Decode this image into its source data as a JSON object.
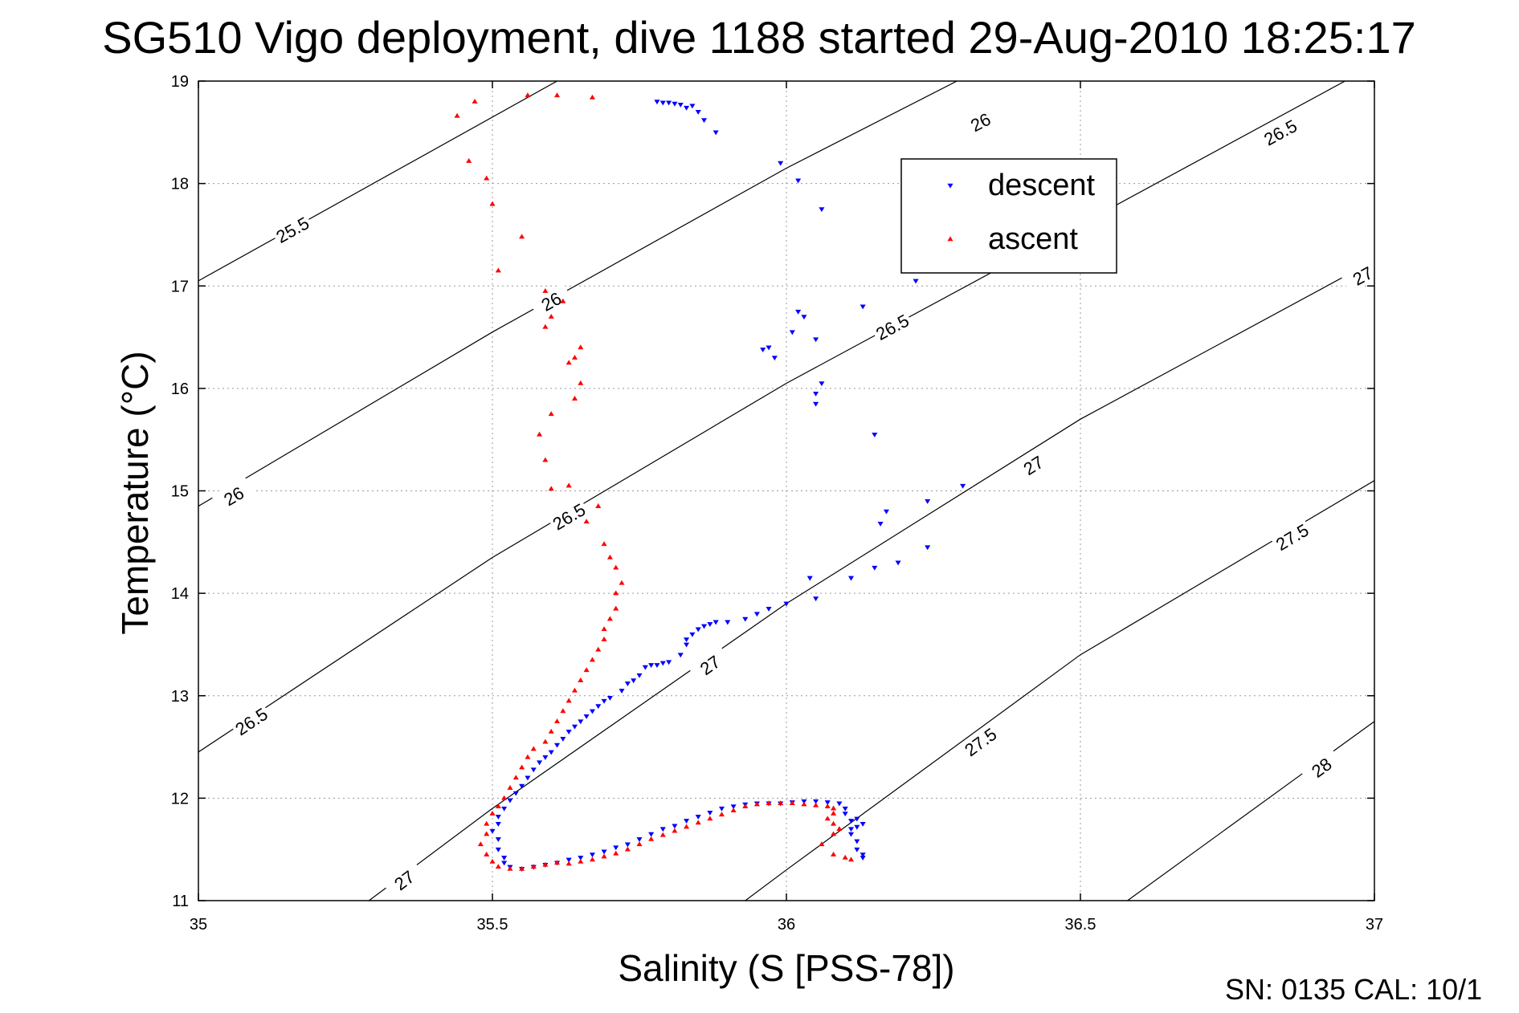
{
  "chart_data": {
    "type": "scatter",
    "title": "SG510 Vigo deployment, dive 1188 started 29-Aug-2010 18:25:17",
    "xlabel": "Salinity (S [PSS-78])",
    "ylabel": "Temperature (°C)",
    "xlim": [
      35,
      37
    ],
    "ylim": [
      11,
      19
    ],
    "xticks": [
      35,
      35.5,
      36,
      36.5,
      37
    ],
    "xtick_labels": [
      "35",
      "35.5",
      "36",
      "36.5",
      "37"
    ],
    "yticks": [
      11,
      12,
      13,
      14,
      15,
      16,
      17,
      18,
      19
    ],
    "ytick_labels": [
      "11",
      "12",
      "13",
      "14",
      "15",
      "16",
      "17",
      "18",
      "19"
    ],
    "grid": true,
    "legend_position": "top-right",
    "footer_text": "SN: 0135  CAL: 10/1",
    "density_contours": [
      {
        "level": "25.5",
        "points": [
          [
            35.0,
            17.05
          ],
          [
            35.61,
            19.0
          ]
        ],
        "labels": [
          {
            "x": 35.16,
            "y": 17.55
          }
        ]
      },
      {
        "level": "26",
        "points": [
          [
            35.0,
            14.85
          ],
          [
            35.5,
            16.55
          ],
          [
            36.0,
            18.15
          ],
          [
            36.29,
            19.0
          ]
        ],
        "labels": [
          {
            "x": 35.06,
            "y": 14.95
          },
          {
            "x": 35.6,
            "y": 16.85
          },
          {
            "x": 36.33,
            "y": 18.6
          }
        ]
      },
      {
        "level": "26.5",
        "points": [
          [
            35.0,
            12.45
          ],
          [
            35.5,
            14.35
          ],
          [
            36.0,
            16.05
          ],
          [
            36.5,
            17.6
          ],
          [
            36.95,
            19.0
          ]
        ],
        "labels": [
          {
            "x": 35.09,
            "y": 12.75
          },
          {
            "x": 35.63,
            "y": 14.75
          },
          {
            "x": 36.18,
            "y": 16.6
          },
          {
            "x": 36.84,
            "y": 18.5
          }
        ]
      },
      {
        "level": "27",
        "points": [
          [
            35.29,
            11.0
          ],
          [
            35.5,
            11.9
          ],
          [
            36.0,
            13.9
          ],
          [
            36.5,
            15.7
          ],
          [
            37.0,
            17.25
          ]
        ],
        "labels": [
          {
            "x": 35.35,
            "y": 11.2
          },
          {
            "x": 35.87,
            "y": 13.3
          },
          {
            "x": 36.42,
            "y": 15.25
          },
          {
            "x": 36.98,
            "y": 17.1
          }
        ]
      },
      {
        "level": "27.5",
        "points": [
          [
            35.93,
            11.0
          ],
          [
            36.0,
            11.3
          ],
          [
            36.5,
            13.4
          ],
          [
            37.0,
            15.1
          ]
        ],
        "labels": [
          {
            "x": 36.33,
            "y": 12.55
          },
          {
            "x": 36.86,
            "y": 14.55
          }
        ]
      },
      {
        "level": "28",
        "points": [
          [
            36.58,
            11.0
          ],
          [
            37.0,
            12.75
          ]
        ],
        "labels": [
          {
            "x": 36.91,
            "y": 12.3
          }
        ]
      }
    ],
    "series": [
      {
        "name": "descent",
        "color": "#0000ff",
        "marker": "triangle-down",
        "points": [
          [
            35.78,
            18.8
          ],
          [
            35.79,
            18.79
          ],
          [
            35.8,
            18.79
          ],
          [
            35.81,
            18.78
          ],
          [
            35.82,
            18.77
          ],
          [
            35.83,
            18.74
          ],
          [
            35.84,
            18.76
          ],
          [
            35.85,
            18.7
          ],
          [
            35.86,
            18.62
          ],
          [
            35.88,
            18.5
          ],
          [
            35.99,
            18.2
          ],
          [
            36.02,
            18.03
          ],
          [
            36.06,
            17.75
          ],
          [
            36.22,
            17.05
          ],
          [
            36.13,
            16.8
          ],
          [
            36.02,
            16.75
          ],
          [
            36.03,
            16.7
          ],
          [
            36.01,
            16.55
          ],
          [
            36.05,
            16.48
          ],
          [
            35.97,
            16.4
          ],
          [
            35.98,
            16.3
          ],
          [
            35.96,
            16.38
          ],
          [
            36.06,
            16.05
          ],
          [
            36.05,
            15.95
          ],
          [
            36.05,
            15.85
          ],
          [
            36.15,
            15.55
          ],
          [
            36.3,
            15.05
          ],
          [
            36.24,
            14.9
          ],
          [
            36.17,
            14.8
          ],
          [
            36.16,
            14.68
          ],
          [
            36.24,
            14.45
          ],
          [
            36.19,
            14.3
          ],
          [
            36.15,
            14.25
          ],
          [
            36.11,
            14.15
          ],
          [
            36.04,
            14.15
          ],
          [
            36.05,
            13.95
          ],
          [
            36.0,
            13.9
          ],
          [
            35.97,
            13.85
          ],
          [
            35.95,
            13.8
          ],
          [
            35.93,
            13.75
          ],
          [
            35.9,
            13.72
          ],
          [
            35.88,
            13.72
          ],
          [
            35.87,
            13.7
          ],
          [
            35.86,
            13.68
          ],
          [
            35.85,
            13.65
          ],
          [
            35.84,
            13.6
          ],
          [
            35.83,
            13.55
          ],
          [
            35.83,
            13.5
          ],
          [
            35.82,
            13.4
          ],
          [
            35.8,
            13.33
          ],
          [
            35.79,
            13.32
          ],
          [
            35.78,
            13.3
          ],
          [
            35.77,
            13.3
          ],
          [
            35.76,
            13.28
          ],
          [
            35.75,
            13.2
          ],
          [
            35.74,
            13.15
          ],
          [
            35.73,
            13.12
          ],
          [
            35.72,
            13.05
          ],
          [
            35.7,
            12.98
          ],
          [
            35.69,
            12.95
          ],
          [
            35.68,
            12.9
          ],
          [
            35.67,
            12.85
          ],
          [
            35.66,
            12.8
          ],
          [
            35.65,
            12.75
          ],
          [
            35.64,
            12.7
          ],
          [
            35.63,
            12.65
          ],
          [
            35.62,
            12.58
          ],
          [
            35.61,
            12.52
          ],
          [
            35.6,
            12.45
          ],
          [
            35.59,
            12.4
          ],
          [
            35.58,
            12.35
          ],
          [
            35.57,
            12.28
          ],
          [
            35.56,
            12.2
          ],
          [
            35.55,
            12.12
          ],
          [
            35.54,
            12.05
          ],
          [
            35.53,
            11.98
          ],
          [
            35.52,
            11.9
          ],
          [
            35.51,
            11.82
          ],
          [
            35.51,
            11.75
          ],
          [
            35.5,
            11.68
          ],
          [
            35.51,
            11.6
          ],
          [
            35.51,
            11.5
          ],
          [
            35.52,
            11.42
          ],
          [
            35.52,
            11.37
          ],
          [
            35.53,
            11.33
          ],
          [
            35.55,
            11.31
          ],
          [
            35.57,
            11.33
          ],
          [
            35.59,
            11.35
          ],
          [
            35.61,
            11.37
          ],
          [
            35.63,
            11.4
          ],
          [
            35.65,
            11.42
          ],
          [
            35.67,
            11.45
          ],
          [
            35.69,
            11.48
          ],
          [
            35.71,
            11.52
          ],
          [
            35.73,
            11.55
          ],
          [
            35.75,
            11.6
          ],
          [
            35.77,
            11.65
          ],
          [
            35.79,
            11.7
          ],
          [
            35.81,
            11.73
          ],
          [
            35.83,
            11.78
          ],
          [
            35.85,
            11.82
          ],
          [
            35.87,
            11.86
          ],
          [
            35.89,
            11.9
          ],
          [
            35.91,
            11.92
          ],
          [
            35.93,
            11.94
          ],
          [
            35.95,
            11.95
          ],
          [
            35.97,
            11.95
          ],
          [
            35.99,
            11.95
          ],
          [
            36.01,
            11.96
          ],
          [
            36.03,
            11.97
          ],
          [
            36.05,
            11.97
          ],
          [
            36.07,
            11.96
          ],
          [
            36.09,
            11.95
          ],
          [
            36.1,
            11.9
          ],
          [
            36.1,
            11.85
          ],
          [
            36.11,
            11.78
          ],
          [
            36.12,
            11.72
          ],
          [
            36.11,
            11.65
          ],
          [
            36.12,
            11.58
          ],
          [
            36.12,
            11.5
          ],
          [
            36.13,
            11.45
          ],
          [
            36.13,
            11.42
          ],
          [
            36.12,
            11.8
          ],
          [
            36.13,
            11.75
          ],
          [
            36.11,
            11.7
          ]
        ]
      },
      {
        "name": "ascent",
        "color": "#ff0000",
        "marker": "triangle-up",
        "points": [
          [
            35.44,
            18.66
          ],
          [
            35.47,
            18.8
          ],
          [
            35.56,
            18.86
          ],
          [
            35.61,
            18.86
          ],
          [
            35.67,
            18.84
          ],
          [
            35.46,
            18.22
          ],
          [
            35.49,
            18.05
          ],
          [
            35.5,
            17.8
          ],
          [
            35.55,
            17.48
          ],
          [
            35.51,
            17.15
          ],
          [
            35.59,
            16.95
          ],
          [
            35.62,
            16.85
          ],
          [
            35.6,
            16.7
          ],
          [
            35.59,
            16.6
          ],
          [
            35.65,
            16.4
          ],
          [
            35.64,
            16.3
          ],
          [
            35.63,
            16.25
          ],
          [
            35.65,
            16.05
          ],
          [
            35.64,
            15.9
          ],
          [
            35.6,
            15.75
          ],
          [
            35.58,
            15.55
          ],
          [
            35.59,
            15.3
          ],
          [
            35.6,
            15.02
          ],
          [
            35.63,
            15.05
          ],
          [
            35.68,
            14.85
          ],
          [
            35.66,
            14.7
          ],
          [
            35.69,
            14.48
          ],
          [
            35.7,
            14.35
          ],
          [
            35.71,
            14.25
          ],
          [
            35.72,
            14.1
          ],
          [
            35.71,
            14.0
          ],
          [
            35.71,
            13.85
          ],
          [
            35.7,
            13.75
          ],
          [
            35.69,
            13.65
          ],
          [
            35.69,
            13.55
          ],
          [
            35.68,
            13.45
          ],
          [
            35.67,
            13.35
          ],
          [
            35.66,
            13.25
          ],
          [
            35.65,
            13.15
          ],
          [
            35.64,
            13.05
          ],
          [
            35.63,
            12.95
          ],
          [
            35.62,
            12.85
          ],
          [
            35.61,
            12.75
          ],
          [
            35.6,
            12.65
          ],
          [
            35.59,
            12.55
          ],
          [
            35.57,
            12.48
          ],
          [
            35.56,
            12.4
          ],
          [
            35.55,
            12.3
          ],
          [
            35.54,
            12.2
          ],
          [
            35.53,
            12.1
          ],
          [
            35.52,
            12.0
          ],
          [
            35.51,
            11.92
          ],
          [
            35.5,
            11.85
          ],
          [
            35.49,
            11.75
          ],
          [
            35.49,
            11.65
          ],
          [
            35.48,
            11.55
          ],
          [
            35.49,
            11.45
          ],
          [
            35.5,
            11.38
          ],
          [
            35.51,
            11.33
          ],
          [
            35.53,
            11.31
          ],
          [
            35.55,
            11.31
          ],
          [
            35.57,
            11.33
          ],
          [
            35.59,
            11.35
          ],
          [
            35.61,
            11.37
          ],
          [
            35.63,
            11.36
          ],
          [
            35.65,
            11.38
          ],
          [
            35.67,
            11.4
          ],
          [
            35.69,
            11.43
          ],
          [
            35.71,
            11.46
          ],
          [
            35.73,
            11.5
          ],
          [
            35.75,
            11.55
          ],
          [
            35.77,
            11.6
          ],
          [
            35.79,
            11.64
          ],
          [
            35.81,
            11.68
          ],
          [
            35.83,
            11.72
          ],
          [
            35.85,
            11.76
          ],
          [
            35.87,
            11.8
          ],
          [
            35.89,
            11.84
          ],
          [
            35.91,
            11.88
          ],
          [
            35.93,
            11.92
          ],
          [
            35.95,
            11.94
          ],
          [
            35.97,
            11.95
          ],
          [
            35.99,
            11.95
          ],
          [
            36.01,
            11.95
          ],
          [
            36.03,
            11.94
          ],
          [
            36.05,
            11.93
          ],
          [
            36.07,
            11.92
          ],
          [
            36.08,
            11.9
          ],
          [
            36.08,
            11.85
          ],
          [
            36.07,
            11.8
          ],
          [
            36.08,
            11.75
          ],
          [
            36.09,
            11.7
          ],
          [
            36.08,
            11.65
          ],
          [
            36.06,
            11.55
          ],
          [
            36.08,
            11.45
          ],
          [
            36.1,
            11.42
          ],
          [
            36.11,
            11.4
          ]
        ]
      }
    ]
  }
}
